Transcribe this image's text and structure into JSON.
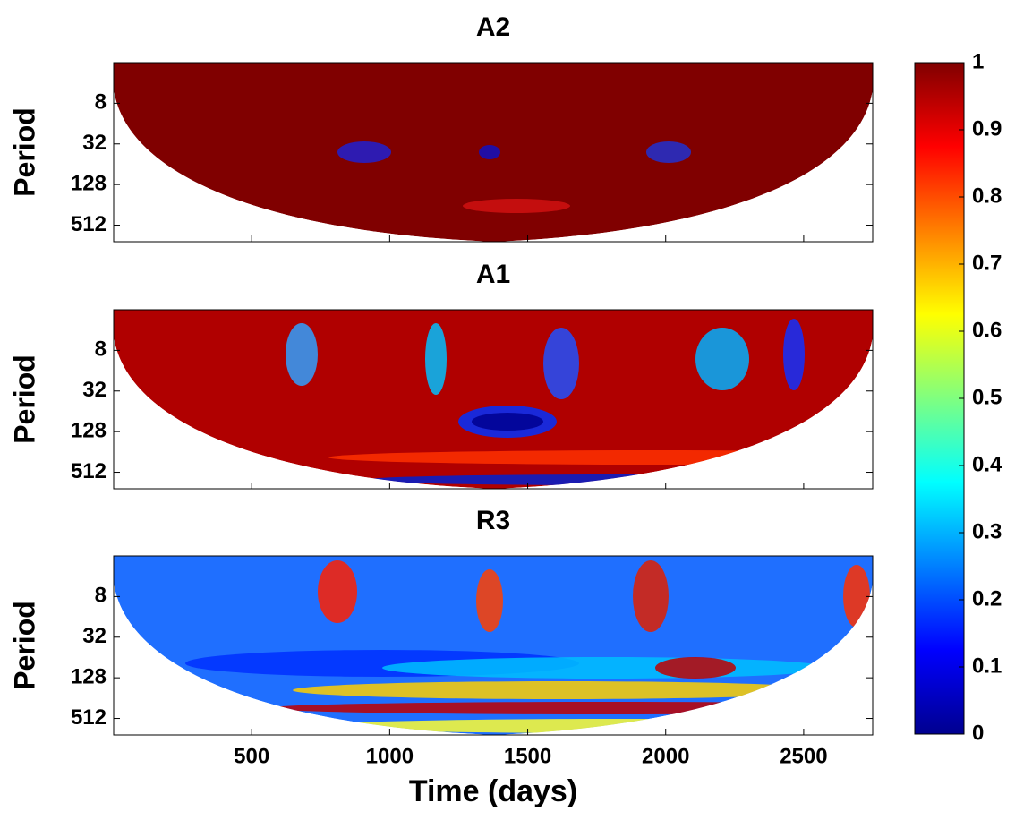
{
  "chart_data": [
    {
      "type": "heatmap",
      "title": "A2",
      "ylabel": "Period",
      "log_y": true,
      "ylim": [
        2,
        900
      ],
      "yticks": [
        8,
        32,
        128,
        512
      ],
      "xlim": [
        0,
        2750
      ],
      "xticks": [
        500,
        1000,
        1500,
        2000,
        2500
      ],
      "xtick_labels": false,
      "color": "#800000"
    },
    {
      "type": "heatmap",
      "title": "A1",
      "ylabel": "Period",
      "log_y": true,
      "ylim": [
        2,
        900
      ],
      "yticks": [
        8,
        32,
        128,
        512
      ],
      "xlim": [
        0,
        2750
      ],
      "xticks": [
        500,
        1000,
        1500,
        2000,
        2500
      ],
      "xtick_labels": false,
      "color": "#b00000"
    },
    {
      "type": "heatmap",
      "title": "R3",
      "ylabel": "Period",
      "log_y": true,
      "ylim": [
        2,
        900
      ],
      "yticks": [
        8,
        32,
        128,
        512
      ],
      "xlim": [
        0,
        2750
      ],
      "xticks": [
        500,
        1000,
        1500,
        2000,
        2500
      ],
      "xtick_labels": true,
      "xlabel": "Time (days)",
      "color": "#1f6fff"
    },
    {
      "type": "colorbar",
      "colormap": "jet",
      "ylim": [
        0,
        1
      ],
      "yticks": [
        0,
        0.1,
        0.2,
        0.3,
        0.4,
        0.5,
        0.6,
        0.7,
        0.8,
        0.9,
        1
      ]
    }
  ]
}
